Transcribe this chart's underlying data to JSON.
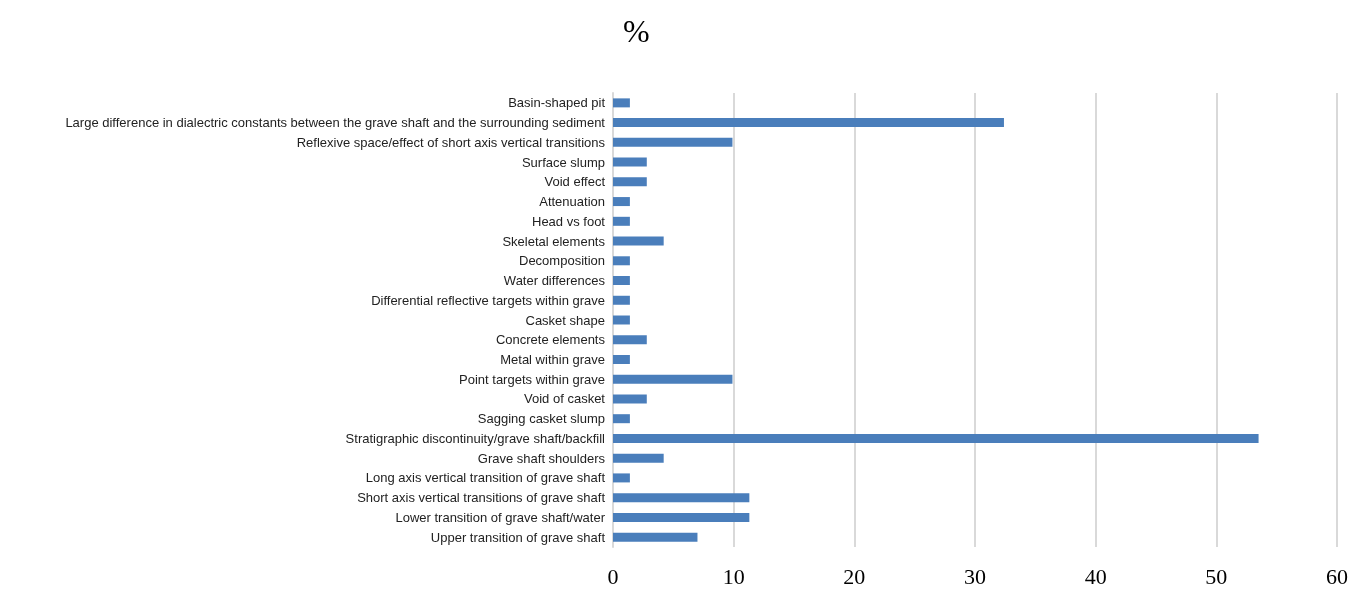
{
  "chart_data": {
    "type": "bar",
    "orientation": "horizontal",
    "title": "%",
    "categories": [
      "Basin-shaped pit",
      "Large difference in dialectric constants between the grave shaft and the surrounding sediment",
      "Reflexive space/effect of short axis vertical transitions",
      "Surface slump",
      "Void effect",
      "Attenuation",
      "Head vs foot",
      "Skeletal elements",
      "Decomposition",
      "Water differences",
      "Differential reflective targets within grave",
      "Casket shape",
      "Concrete elements",
      "Metal within grave",
      "Point targets within grave",
      "Void of casket",
      "Sagging casket slump",
      "Stratigraphic discontinuity/grave shaft/backfill",
      "Grave shaft shoulders",
      "Long axis vertical transition of grave shaft",
      "Short axis vertical transitions of grave shaft",
      "Lower transition of grave shaft/water",
      "Upper transition of grave shaft"
    ],
    "values": [
      1.4,
      32.4,
      9.9,
      2.8,
      2.8,
      1.4,
      1.4,
      4.2,
      1.4,
      1.4,
      1.4,
      1.4,
      2.8,
      1.4,
      9.9,
      2.8,
      1.4,
      53.5,
      4.2,
      1.4,
      11.3,
      11.3,
      7.0
    ],
    "color": "#4a7ebb",
    "xlim": [
      0,
      60
    ],
    "xticks": [
      0,
      10,
      20,
      30,
      40,
      50,
      60
    ],
    "grid": "x"
  }
}
